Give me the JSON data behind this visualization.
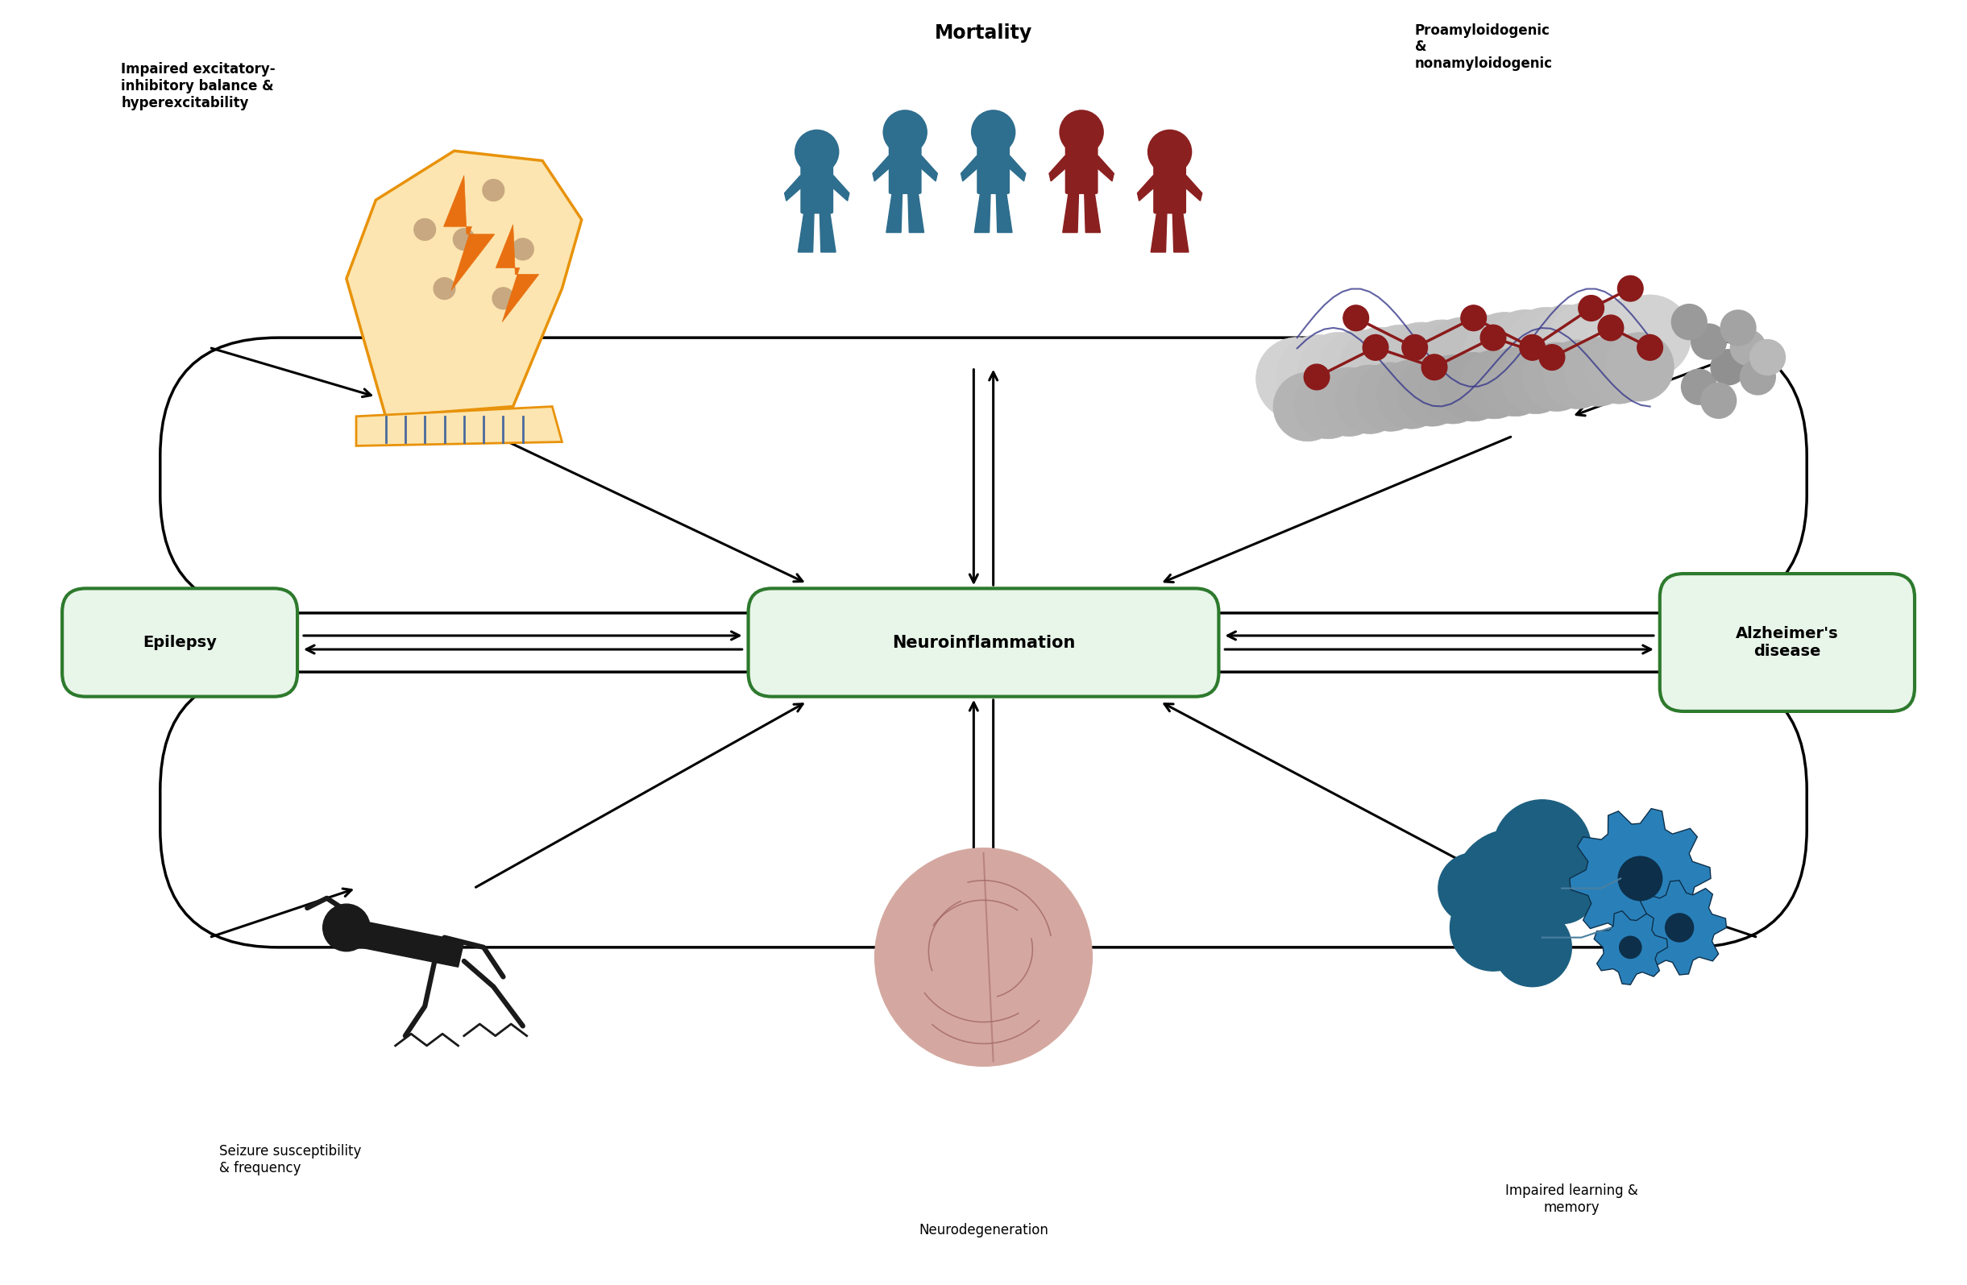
{
  "bg_color": "#ffffff",
  "center_label": "Neuroinflammation",
  "left_label": "Epilepsy",
  "right_label": "Alzheimer's\ndisease",
  "top_label": "Mortality",
  "top_left_label": "Impaired excitatory-\ninhibitory balance &\nhyperexcitability",
  "top_right_label": "Proamyloidogenic\n&\nnonamyloidogenic",
  "bottom_left_label": "Seizure susceptibility\n& frequency",
  "bottom_center_label": "Neurodegeneration",
  "bottom_right_label": "Impaired learning &\nmemory",
  "box_fill_color": "#e8f5e9",
  "box_edge_color": "#2d7a2d",
  "teal_color": "#2e6e8e",
  "dark_red_color": "#8b2020",
  "neuron_body_color": "#fce5b0",
  "neuron_outline_color": "#e8920a",
  "bolt_color": "#e87010",
  "axon_color": "#4a6a9c",
  "brain_color": "#d4a8a0",
  "brain_outline": "#9e6060",
  "gear_blue": "#1d5f80",
  "gear_light": "#2980b9"
}
